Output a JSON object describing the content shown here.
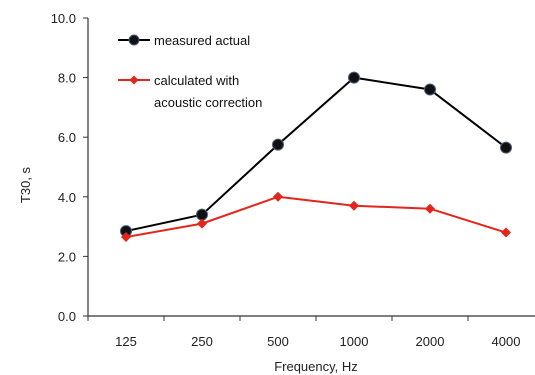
{
  "chart_data": {
    "type": "line",
    "title": "",
    "xlabel": "Frequency, Hz",
    "ylabel": "T30, s",
    "categories": [
      "125",
      "250",
      "500",
      "1000",
      "2000",
      "4000"
    ],
    "ylim": [
      0,
      10
    ],
    "y_ticks": [
      "0.0",
      "2.0",
      "4.0",
      "6.0",
      "8.0",
      "10.0"
    ],
    "grid": false,
    "legend_position": "top-left",
    "series": [
      {
        "name": "measured actual",
        "legend_lines": [
          "measured actual"
        ],
        "color": "#000000",
        "marker": "circle",
        "values": [
          2.85,
          3.4,
          5.75,
          8.0,
          7.6,
          5.65
        ]
      },
      {
        "name": "calculated with acoustic correction",
        "legend_lines": [
          "calculated with",
          "acoustic correction"
        ],
        "color": "#e3261b",
        "marker": "diamond",
        "values": [
          2.65,
          3.1,
          4.0,
          3.7,
          3.6,
          2.8
        ]
      }
    ]
  }
}
